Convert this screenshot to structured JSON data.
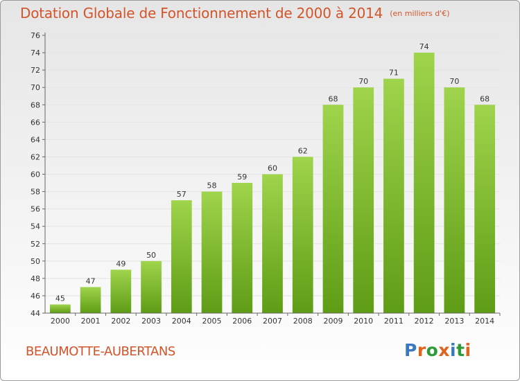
{
  "header": {
    "title": "Dotation Globale de Fonctionnement de 2000 à 2014",
    "unit": "(en milliers d'€)"
  },
  "commune": "BEAUMOTTE-AUBERTANS",
  "logo": {
    "text": "Proxiti",
    "letter_colors": [
      "#3a78c2",
      "#e0621e",
      "#2f9a3a",
      "#e0621e",
      "#3a78c2",
      "#2f9a3a",
      "#e0621e"
    ]
  },
  "colors": {
    "bar_top": "#9fd44c",
    "bar_bottom": "#5f9c16",
    "title": "#d2542a",
    "grid": "#e4e4e4"
  },
  "chart_data": {
    "type": "bar",
    "title": "Dotation Globale de Fonctionnement de 2000 à 2014",
    "xlabel": "",
    "ylabel": "",
    "categories": [
      "2000",
      "2001",
      "2002",
      "2003",
      "2004",
      "2005",
      "2006",
      "2007",
      "2008",
      "2009",
      "2010",
      "2011",
      "2012",
      "2013",
      "2014"
    ],
    "values": [
      45,
      47,
      49,
      50,
      57,
      58,
      59,
      60,
      62,
      68,
      70,
      71,
      74,
      70,
      68
    ],
    "ylim": [
      44,
      76
    ],
    "yticks": [
      "44",
      "46",
      "48",
      "50",
      "52",
      "54",
      "56",
      "58",
      "60",
      "62",
      "64",
      "66",
      "68",
      "70",
      "72",
      "74",
      "76"
    ],
    "grid": true
  }
}
